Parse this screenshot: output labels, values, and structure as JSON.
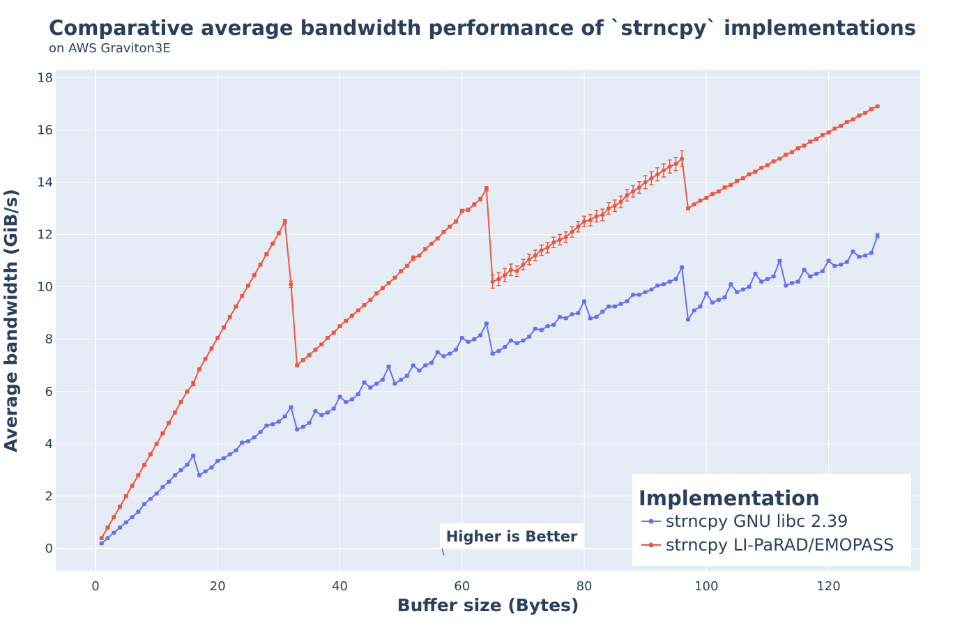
{
  "chart_data": {
    "type": "line",
    "title": "Comparative average bandwidth performance of `strncpy` implementations",
    "subtitle": "on AWS Graviton3E",
    "xlabel": "Buffer size (Bytes)",
    "ylabel": "Average bandwidth (GiB/s)",
    "xlim": [
      -6.5,
      135
    ],
    "ylim": [
      -0.85,
      18.3
    ],
    "x_ticks": [
      0,
      20,
      40,
      60,
      80,
      100,
      120
    ],
    "y_ticks": [
      0,
      2,
      4,
      6,
      8,
      10,
      12,
      14,
      16,
      18
    ],
    "grid": true,
    "legend": {
      "title": "Implementation",
      "placement": "bottom-right"
    },
    "annotation": {
      "text": "Higher is Better",
      "x": 57.5,
      "y": -0.25
    },
    "x": [
      1,
      2,
      3,
      4,
      5,
      6,
      7,
      8,
      9,
      10,
      11,
      12,
      13,
      14,
      15,
      16,
      17,
      18,
      19,
      20,
      21,
      22,
      23,
      24,
      25,
      26,
      27,
      28,
      29,
      30,
      31,
      32,
      33,
      34,
      35,
      36,
      37,
      38,
      39,
      40,
      41,
      42,
      43,
      44,
      45,
      46,
      47,
      48,
      49,
      50,
      51,
      52,
      53,
      54,
      55,
      56,
      57,
      58,
      59,
      60,
      61,
      62,
      63,
      64,
      65,
      66,
      67,
      68,
      69,
      70,
      71,
      72,
      73,
      74,
      75,
      76,
      77,
      78,
      79,
      80,
      81,
      82,
      83,
      84,
      85,
      86,
      87,
      88,
      89,
      90,
      91,
      92,
      93,
      94,
      95,
      96,
      97,
      98,
      99,
      100,
      101,
      102,
      103,
      104,
      105,
      106,
      107,
      108,
      109,
      110,
      111,
      112,
      113,
      114,
      115,
      116,
      117,
      118,
      119,
      120,
      121,
      122,
      123,
      124,
      125,
      126,
      127,
      128
    ],
    "series": [
      {
        "name": "strncpy GNU libc 2.39",
        "color": "#636efa",
        "values": [
          0.2,
          0.4,
          0.6,
          0.8,
          1.0,
          1.2,
          1.4,
          1.7,
          1.9,
          2.1,
          2.35,
          2.55,
          2.8,
          3.0,
          3.2,
          3.55,
          2.8,
          2.95,
          3.1,
          3.35,
          3.45,
          3.6,
          3.75,
          4.05,
          4.1,
          4.25,
          4.45,
          4.7,
          4.75,
          4.85,
          5.05,
          5.4,
          4.55,
          4.65,
          4.8,
          5.25,
          5.1,
          5.2,
          5.35,
          5.8,
          5.6,
          5.7,
          5.9,
          6.35,
          6.15,
          6.3,
          6.45,
          6.95,
          6.3,
          6.45,
          6.6,
          7.0,
          6.8,
          7.0,
          7.1,
          7.5,
          7.35,
          7.45,
          7.6,
          8.05,
          7.9,
          8.0,
          8.15,
          8.6,
          7.45,
          7.55,
          7.7,
          7.95,
          7.85,
          7.95,
          8.1,
          8.4,
          8.35,
          8.5,
          8.55,
          8.85,
          8.8,
          8.95,
          9.0,
          9.45,
          8.8,
          8.85,
          9.05,
          9.25,
          9.25,
          9.35,
          9.45,
          9.7,
          9.7,
          9.8,
          9.9,
          10.05,
          10.1,
          10.2,
          10.3,
          10.75,
          8.75,
          9.1,
          9.25,
          9.75,
          9.4,
          9.5,
          9.6,
          10.1,
          9.8,
          9.9,
          10.0,
          10.5,
          10.2,
          10.3,
          10.4,
          11.0,
          10.05,
          10.15,
          10.2,
          10.65,
          10.4,
          10.5,
          10.6,
          11.0,
          10.8,
          10.85,
          10.95,
          11.35,
          11.15,
          11.2,
          11.3,
          11.95
        ],
        "errors": [
          0.04,
          0.04,
          0.04,
          0.04,
          0.04,
          0.04,
          0.04,
          0.04,
          0.04,
          0.04,
          0.04,
          0.04,
          0.04,
          0.04,
          0.04,
          0.05,
          0.04,
          0.04,
          0.04,
          0.04,
          0.04,
          0.04,
          0.04,
          0.04,
          0.04,
          0.04,
          0.04,
          0.04,
          0.04,
          0.04,
          0.04,
          0.05,
          0.04,
          0.04,
          0.04,
          0.04,
          0.04,
          0.04,
          0.04,
          0.04,
          0.04,
          0.04,
          0.04,
          0.04,
          0.04,
          0.04,
          0.04,
          0.04,
          0.04,
          0.04,
          0.04,
          0.04,
          0.04,
          0.04,
          0.04,
          0.04,
          0.04,
          0.04,
          0.04,
          0.04,
          0.04,
          0.04,
          0.04,
          0.05,
          0.04,
          0.04,
          0.04,
          0.04,
          0.04,
          0.04,
          0.04,
          0.04,
          0.04,
          0.04,
          0.04,
          0.04,
          0.04,
          0.04,
          0.04,
          0.04,
          0.04,
          0.04,
          0.04,
          0.04,
          0.04,
          0.04,
          0.04,
          0.04,
          0.04,
          0.04,
          0.04,
          0.04,
          0.04,
          0.04,
          0.04,
          0.05,
          0.04,
          0.04,
          0.04,
          0.04,
          0.04,
          0.04,
          0.04,
          0.04,
          0.04,
          0.04,
          0.04,
          0.04,
          0.04,
          0.04,
          0.04,
          0.04,
          0.04,
          0.04,
          0.04,
          0.04,
          0.04,
          0.04,
          0.04,
          0.04,
          0.04,
          0.04,
          0.04,
          0.04,
          0.04,
          0.04,
          0.04,
          0.08
        ]
      },
      {
        "name": "strncpy LI-PaRAD/EMOPASS",
        "color": "#ef553b",
        "values": [
          0.4,
          0.8,
          1.2,
          1.6,
          2.0,
          2.4,
          2.8,
          3.2,
          3.6,
          4.0,
          4.4,
          4.8,
          5.2,
          5.6,
          6.0,
          6.3,
          6.85,
          7.25,
          7.65,
          8.05,
          8.45,
          8.85,
          9.25,
          9.65,
          10.05,
          10.45,
          10.85,
          11.25,
          11.65,
          12.05,
          12.5,
          10.1,
          7.0,
          7.2,
          7.4,
          7.6,
          7.8,
          8.05,
          8.25,
          8.5,
          8.7,
          8.9,
          9.1,
          9.3,
          9.5,
          9.75,
          9.95,
          10.15,
          10.35,
          10.6,
          10.8,
          11.1,
          11.2,
          11.45,
          11.65,
          11.85,
          12.1,
          12.3,
          12.5,
          12.9,
          12.95,
          13.15,
          13.35,
          13.75,
          10.2,
          10.3,
          10.45,
          10.65,
          10.6,
          10.85,
          11.05,
          11.2,
          11.4,
          11.5,
          11.7,
          11.8,
          11.9,
          12.1,
          12.3,
          12.5,
          12.55,
          12.7,
          12.75,
          13.0,
          13.1,
          13.25,
          13.5,
          13.65,
          13.8,
          14.0,
          14.15,
          14.3,
          14.45,
          14.6,
          14.7,
          14.9,
          13.0,
          13.15,
          13.3,
          13.4,
          13.55,
          13.65,
          13.8,
          13.9,
          14.05,
          14.15,
          14.3,
          14.4,
          14.55,
          14.65,
          14.8,
          14.9,
          15.05,
          15.15,
          15.3,
          15.4,
          15.55,
          15.65,
          15.8,
          15.9,
          16.05,
          16.15,
          16.3,
          16.4,
          16.55,
          16.65,
          16.8,
          16.9
        ],
        "errors": [
          0.05,
          0.05,
          0.05,
          0.05,
          0.05,
          0.05,
          0.05,
          0.05,
          0.05,
          0.05,
          0.05,
          0.05,
          0.05,
          0.05,
          0.05,
          0.08,
          0.05,
          0.05,
          0.05,
          0.05,
          0.05,
          0.05,
          0.05,
          0.05,
          0.05,
          0.05,
          0.05,
          0.05,
          0.05,
          0.05,
          0.08,
          0.12,
          0.05,
          0.05,
          0.05,
          0.05,
          0.05,
          0.05,
          0.05,
          0.05,
          0.05,
          0.05,
          0.05,
          0.05,
          0.05,
          0.05,
          0.05,
          0.05,
          0.05,
          0.05,
          0.05,
          0.08,
          0.05,
          0.05,
          0.05,
          0.05,
          0.05,
          0.05,
          0.06,
          0.06,
          0.06,
          0.06,
          0.06,
          0.08,
          0.25,
          0.25,
          0.25,
          0.22,
          0.2,
          0.2,
          0.2,
          0.2,
          0.2,
          0.2,
          0.2,
          0.2,
          0.2,
          0.2,
          0.2,
          0.2,
          0.22,
          0.22,
          0.22,
          0.22,
          0.22,
          0.22,
          0.22,
          0.22,
          0.22,
          0.25,
          0.25,
          0.25,
          0.25,
          0.25,
          0.25,
          0.3,
          0.05,
          0.05,
          0.05,
          0.05,
          0.05,
          0.05,
          0.05,
          0.05,
          0.05,
          0.05,
          0.05,
          0.05,
          0.05,
          0.05,
          0.05,
          0.05,
          0.05,
          0.05,
          0.05,
          0.05,
          0.05,
          0.05,
          0.05,
          0.05,
          0.05,
          0.05,
          0.05,
          0.05,
          0.05,
          0.05,
          0.05,
          0.05
        ]
      }
    ]
  }
}
